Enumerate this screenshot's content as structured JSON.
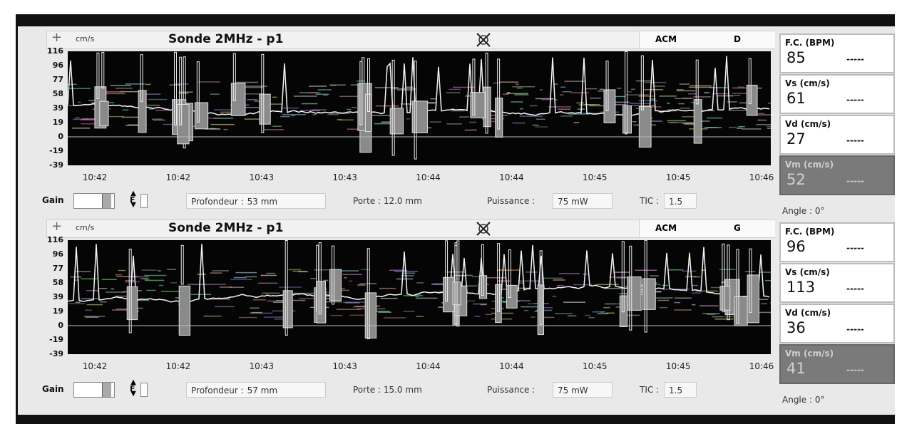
{
  "panels": [
    {
      "header": {
        "unit": "cm/s",
        "probe": "Sonde 2MHz - p1",
        "vessel": "ACM",
        "side": "D"
      },
      "y_axis": [
        "116",
        "96",
        "77",
        "58",
        "39",
        "19",
        "0",
        "-19",
        "-39"
      ],
      "x_axis": [
        "10:42",
        "10:42",
        "10:43",
        "10:43",
        "10:44",
        "10:44",
        "10:45",
        "10:45",
        "10:46"
      ],
      "controls": {
        "gain": "Gain",
        "f_icon": "F",
        "depth_label": "Profondeur :",
        "depth": "53 mm",
        "gate": "Porte : 12.0 mm",
        "power_label": "Puissance :",
        "power": "75 mW",
        "tic_label": "TIC :",
        "tic": "1.5"
      },
      "stats": [
        {
          "label": "F.C. (BPM)",
          "value": "85",
          "placeholder": "-----"
        },
        {
          "label": "Vs (cm/s)",
          "value": "61",
          "placeholder": "-----"
        },
        {
          "label": "Vd (cm/s)",
          "value": "27",
          "placeholder": "-----"
        },
        {
          "label": "Vm (cm/s)",
          "value": "52",
          "placeholder": "-----"
        }
      ],
      "angle": "Angle : 0°"
    },
    {
      "header": {
        "unit": "cm/s",
        "probe": "Sonde 2MHz - p1",
        "vessel": "ACM",
        "side": "G"
      },
      "y_axis": [
        "116",
        "96",
        "77",
        "58",
        "39",
        "19",
        "0",
        "-19",
        "-39"
      ],
      "x_axis": [
        "10:42",
        "10:42",
        "10:43",
        "10:43",
        "10:44",
        "10:44",
        "10:45",
        "10:45",
        "10:46"
      ],
      "controls": {
        "gain": "Gain",
        "f_icon": "F",
        "depth_label": "Profondeur :",
        "depth": "57 mm",
        "gate": "Porte : 15.0 mm",
        "power_label": "Puissance :",
        "power": "75 mW",
        "tic_label": "TIC :",
        "tic": "1.5"
      },
      "stats": [
        {
          "label": "F.C. (BPM)",
          "value": "96",
          "placeholder": "-----"
        },
        {
          "label": "Vs (cm/s)",
          "value": "113",
          "placeholder": "-----"
        },
        {
          "label": "Vd (cm/s)",
          "value": "36",
          "placeholder": "-----"
        },
        {
          "label": "Vm (cm/s)",
          "value": "41",
          "placeholder": "-----"
        }
      ],
      "angle": "Angle : 0°"
    }
  ]
}
